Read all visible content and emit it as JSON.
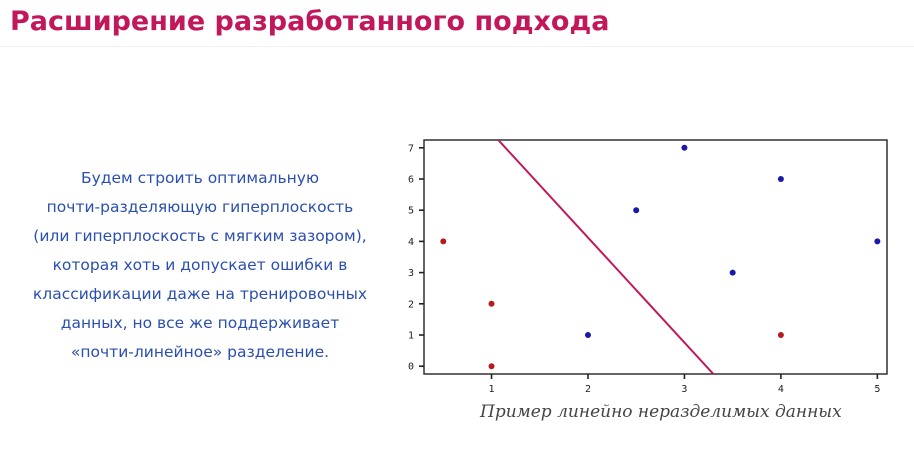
{
  "slide": {
    "title": "Расширение разработанного подхода",
    "body_lines": [
      "Будем строить оптимальную",
      "почти-разделяющую гиперплоскость",
      "(или гиперплоскость с мягким зазором),",
      "которая хоть и допускает ошибки в",
      "классификации даже на тренировочных",
      "данных, но все же поддерживает",
      "«почти-линейное» разделение."
    ],
    "caption": "Пример линейно неразделимых данных"
  },
  "colors": {
    "title": "#c2185b",
    "text": "#2b4fb0",
    "red_class": "#b71c1c",
    "blue_class": "#1a1aa8",
    "separator": "#c2185b"
  },
  "chart_data": {
    "type": "scatter",
    "xlim": [
      0.3,
      5.1
    ],
    "ylim": [
      -0.25,
      7.25
    ],
    "x_ticks": [
      1,
      2,
      3,
      4,
      5
    ],
    "y_ticks": [
      0,
      1,
      2,
      3,
      4,
      5,
      6,
      7
    ],
    "grid": false,
    "series": [
      {
        "color": "#b71c1c",
        "points": [
          [
            0.5,
            4
          ],
          [
            1,
            2
          ],
          [
            1,
            0
          ],
          [
            4,
            1
          ]
        ]
      },
      {
        "color": "#1a1aa8",
        "points": [
          [
            2,
            1
          ],
          [
            2.5,
            5
          ],
          [
            3,
            7
          ],
          [
            3.5,
            3
          ],
          [
            4,
            6
          ],
          [
            5,
            4
          ]
        ]
      }
    ],
    "line": {
      "color": "#c2185b",
      "points": [
        [
          1.07,
          7.25
        ],
        [
          3.3,
          -0.25
        ]
      ]
    }
  }
}
